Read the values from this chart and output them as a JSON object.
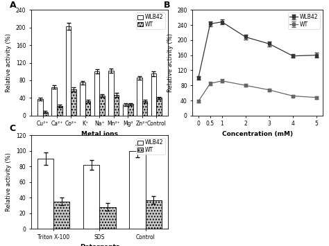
{
  "A": {
    "categories": [
      "Cu²⁺",
      "Ca²⁺",
      "Co²⁺",
      "K⁺",
      "Na⁺",
      "Mn²⁺",
      "Mg²",
      "Zn²⁺",
      "Control"
    ],
    "WLB42": [
      38,
      65,
      202,
      75,
      100,
      102,
      25,
      86,
      95
    ],
    "WT": [
      8,
      22,
      60,
      33,
      45,
      47,
      26,
      33,
      40
    ],
    "WLB42_err": [
      3,
      4,
      8,
      4,
      5,
      5,
      3,
      4,
      5
    ],
    "WT_err": [
      2,
      3,
      5,
      3,
      3,
      4,
      2,
      3,
      3
    ],
    "ylabel": "Relative activity (%)",
    "xlabel": "Metal ions",
    "ylim": [
      0,
      240
    ],
    "yticks": [
      0,
      40,
      80,
      120,
      160,
      200,
      240
    ],
    "label": "A"
  },
  "B": {
    "x": [
      0,
      0.5,
      1,
      2,
      3,
      4,
      5
    ],
    "WLB42": [
      100,
      243,
      248,
      208,
      190,
      158,
      160
    ],
    "WT": [
      38,
      85,
      92,
      80,
      68,
      52,
      48
    ],
    "WLB42_err": [
      5,
      6,
      7,
      6,
      6,
      5,
      6
    ],
    "WT_err": [
      3,
      5,
      5,
      4,
      4,
      3,
      4
    ],
    "ylabel": "Relative activity (%)",
    "xlabel": "Concentration (mM)",
    "ylim": [
      0,
      280
    ],
    "yticks": [
      0,
      40,
      80,
      120,
      160,
      200,
      240,
      280
    ],
    "label": "B"
  },
  "C": {
    "categories": [
      "Triton X-100",
      "SDS",
      "Control"
    ],
    "WLB42": [
      90,
      82,
      100
    ],
    "WT": [
      35,
      28,
      37
    ],
    "WLB42_err": [
      8,
      6,
      8
    ],
    "WT_err": [
      5,
      5,
      5
    ],
    "ylabel": "Relative activity (%)",
    "xlabel": "Detergents",
    "ylim": [
      0,
      120
    ],
    "yticks": [
      0,
      20,
      40,
      60,
      80,
      100,
      120
    ],
    "label": "C"
  },
  "bar_color_WLB42": "#ffffff",
  "bar_color_WT": "#c8c8c8",
  "bar_edge": "#000000",
  "hatch_WT": "....",
  "line_color_WLB42": "#333333",
  "line_color_WT": "#666666",
  "marker_WLB42": "s",
  "marker_WT": "s"
}
